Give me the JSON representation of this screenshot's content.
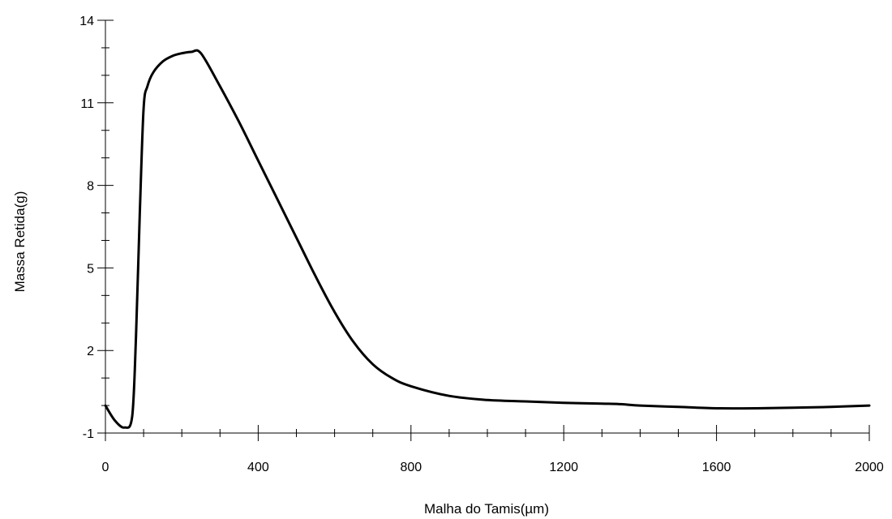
{
  "chart_data": {
    "type": "line",
    "title": "",
    "xlabel": "Malha do Tamis(µm)",
    "ylabel": "Massa Retida(g)",
    "xlim": [
      0,
      2000
    ],
    "ylim": [
      -1,
      14
    ],
    "xticks": [
      "0",
      "400",
      "800",
      "1200",
      "1600",
      "2000"
    ],
    "yticks": [
      "-1",
      "2",
      "5",
      "8",
      "11",
      "14"
    ],
    "grid": false,
    "line_color": "#000000",
    "series": [
      {
        "x": [
          0,
          25,
          50,
          70,
          80,
          90,
          100,
          110,
          125,
          150,
          175,
          200,
          225,
          250,
          300,
          350,
          400,
          450,
          500,
          550,
          600,
          650,
          700,
          750,
          800,
          900,
          1000,
          1100,
          1200,
          1300,
          1350,
          1400,
          1500,
          1600,
          1700,
          1800,
          1900,
          2000
        ],
        "y": [
          0.0,
          -0.55,
          -0.8,
          -0.4,
          2.5,
          7.0,
          10.8,
          11.6,
          12.1,
          12.5,
          12.7,
          12.8,
          12.85,
          12.8,
          11.6,
          10.3,
          8.9,
          7.5,
          6.1,
          4.7,
          3.4,
          2.3,
          1.5,
          1.0,
          0.7,
          0.35,
          0.2,
          0.15,
          0.1,
          0.07,
          0.05,
          0.0,
          -0.05,
          -0.1,
          -0.1,
          -0.08,
          -0.05,
          0.0
        ]
      }
    ]
  }
}
